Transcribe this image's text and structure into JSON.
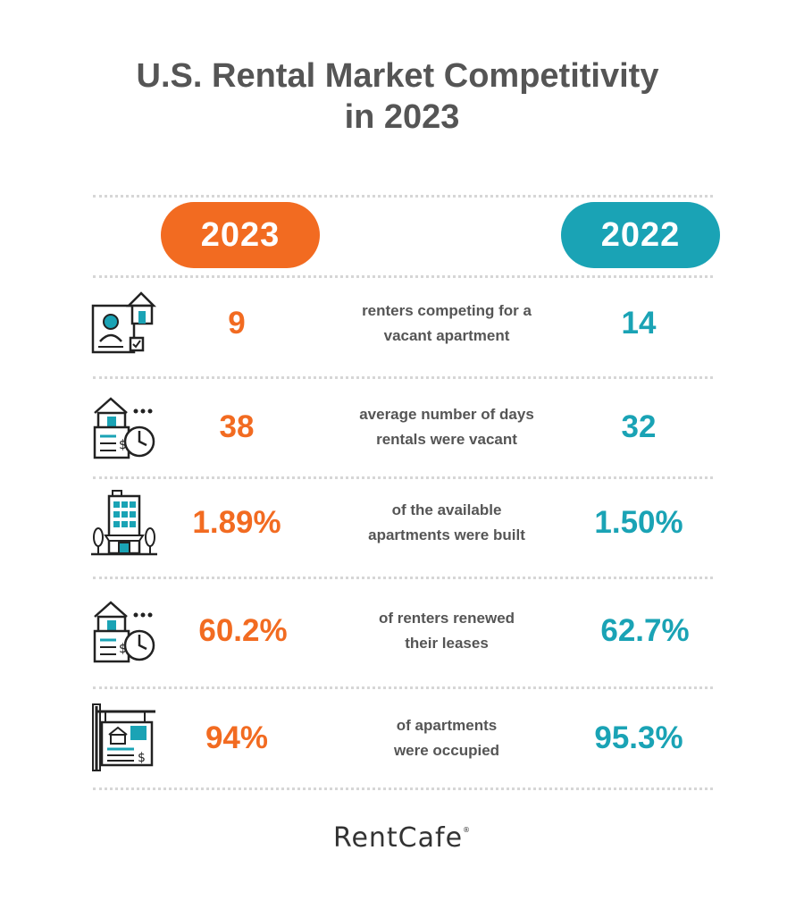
{
  "title": {
    "line1": "U.S. Rental Market Competitivity",
    "line2": "in  2023"
  },
  "colors": {
    "accent_2023": "#f26b21",
    "accent_2022": "#1aa3b5",
    "text": "#555555"
  },
  "columns": {
    "left": "2023",
    "right": "2022"
  },
  "rows": [
    {
      "icon": "renter-application-icon",
      "value_2023": "9",
      "desc1": "renters competing for a",
      "desc2": "vacant apartment",
      "value_2022": "14"
    },
    {
      "icon": "vacancy-days-icon",
      "value_2023": "38",
      "desc1": "average number of days",
      "desc2": "rentals were vacant",
      "value_2022": "32"
    },
    {
      "icon": "apartment-building-icon",
      "value_2023": "1.89%",
      "desc1": "of the available",
      "desc2": "apartments were built",
      "value_2022": "1.50%"
    },
    {
      "icon": "lease-renewal-icon",
      "value_2023": "60.2%",
      "desc1": "of renters renewed",
      "desc2": "their leases",
      "value_2022": "62.7%"
    },
    {
      "icon": "occupied-sign-icon",
      "value_2023": "94%",
      "desc1": "of apartments",
      "desc2": "were occupied",
      "value_2022": "95.3%"
    }
  ],
  "logo": {
    "text": "RentCafe",
    "mark": "®"
  }
}
